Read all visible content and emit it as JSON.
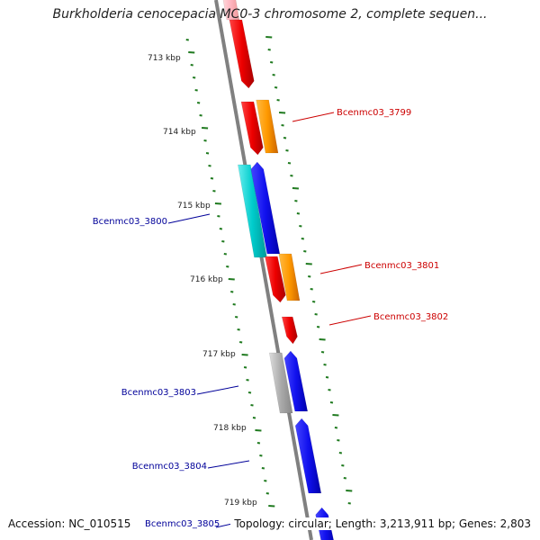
{
  "title": "Burkholderia cenocepacia MC0-3 chromosome 2, complete sequen...",
  "accession": "Accession: NC_010515",
  "stats": "Topology: circular; Length: 3,213,911 bp; Genes: 2,803",
  "colors": {
    "backbone": "#808080",
    "ticks": "#1f7a1f",
    "red": "#ee0000",
    "orange": "#ff9900",
    "blue": "#1111ee",
    "cyan": "#00cccc",
    "gray": "#aaaaaa",
    "pink": "#ffb6c1",
    "label_red": "#cc0000",
    "label_blue": "#000099"
  },
  "ticks": [
    {
      "label": "713 kbp"
    },
    {
      "label": "714 kbp"
    },
    {
      "label": "715 kbp"
    },
    {
      "label": "716 kbp"
    },
    {
      "label": "717 kbp"
    },
    {
      "label": "718 kbp"
    },
    {
      "label": "719 kbp"
    }
  ],
  "gene_labels": [
    {
      "text": "Bcenmc03_3799",
      "color": "red"
    },
    {
      "text": "Bcenmc03_3800",
      "color": "blue"
    },
    {
      "text": "Bcenmc03_3801",
      "color": "red"
    },
    {
      "text": "Bcenmc03_3802",
      "color": "red"
    },
    {
      "text": "Bcenmc03_3803",
      "color": "blue"
    },
    {
      "text": "Bcenmc03_3804",
      "color": "blue"
    },
    {
      "text": "Bcenmc03_3805",
      "color": "blue"
    }
  ]
}
